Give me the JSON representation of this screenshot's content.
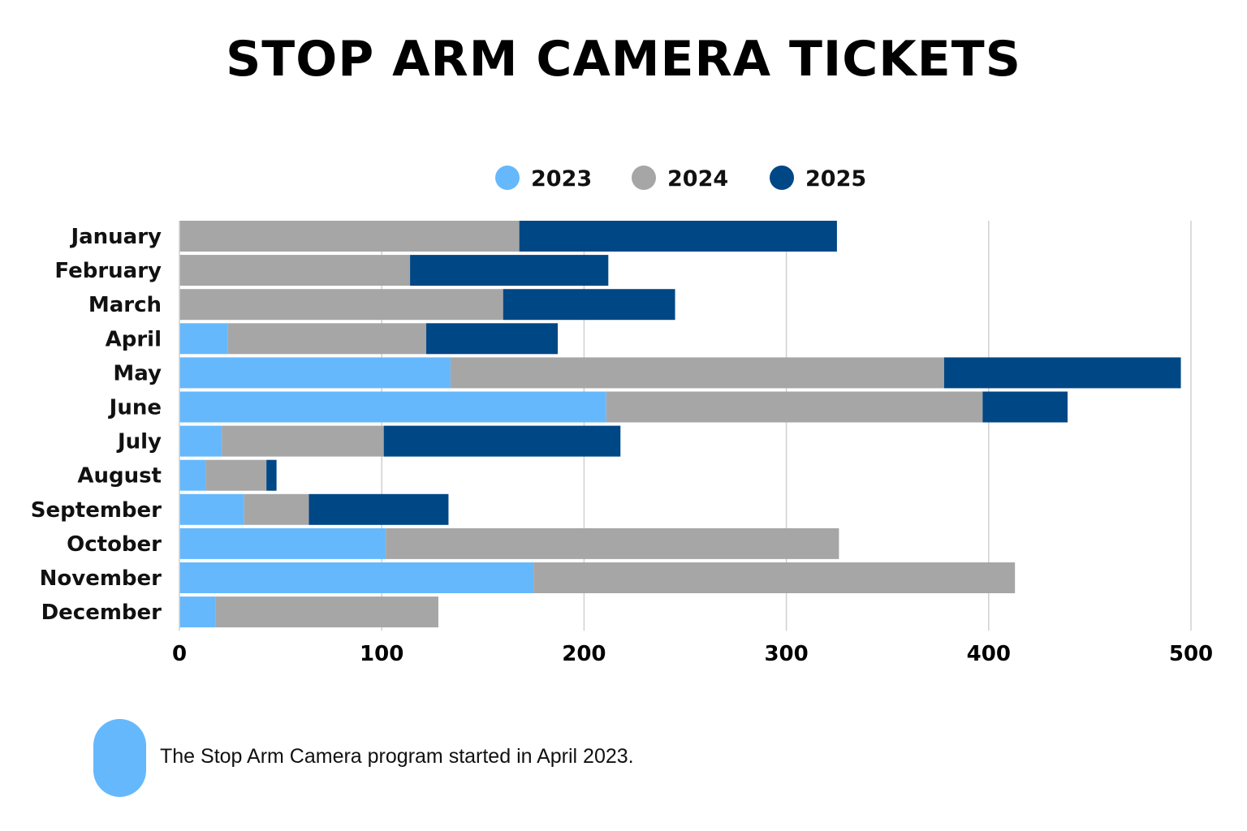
{
  "chart_data": {
    "type": "bar",
    "orientation": "horizontal",
    "stacked": true,
    "title": "STOP ARM CAMERA TICKETS",
    "categories": [
      "January",
      "February",
      "March",
      "April",
      "May",
      "June",
      "July",
      "August",
      "September",
      "October",
      "November",
      "December"
    ],
    "series": [
      {
        "name": "2023",
        "color": "#66B8FC",
        "values": [
          0,
          0,
          0,
          24,
          134,
          211,
          21,
          13,
          32,
          102,
          175,
          18
        ]
      },
      {
        "name": "2024",
        "color": "#A6A6A6",
        "values": [
          168,
          114,
          160,
          98,
          244,
          186,
          80,
          30,
          32,
          224,
          238,
          110
        ]
      },
      {
        "name": "2025",
        "color": "#004785",
        "values": [
          157,
          98,
          85,
          65,
          117,
          42,
          117,
          5,
          69,
          0,
          0,
          0
        ]
      }
    ],
    "xlim": [
      0,
      500
    ],
    "xticks": [
      "0",
      "100",
      "200",
      "300",
      "400",
      "500"
    ],
    "grid": true,
    "legend_position": "top"
  },
  "note": {
    "text": "The Stop Arm Camera program started in April 2023.",
    "color": "#66B8FC"
  }
}
